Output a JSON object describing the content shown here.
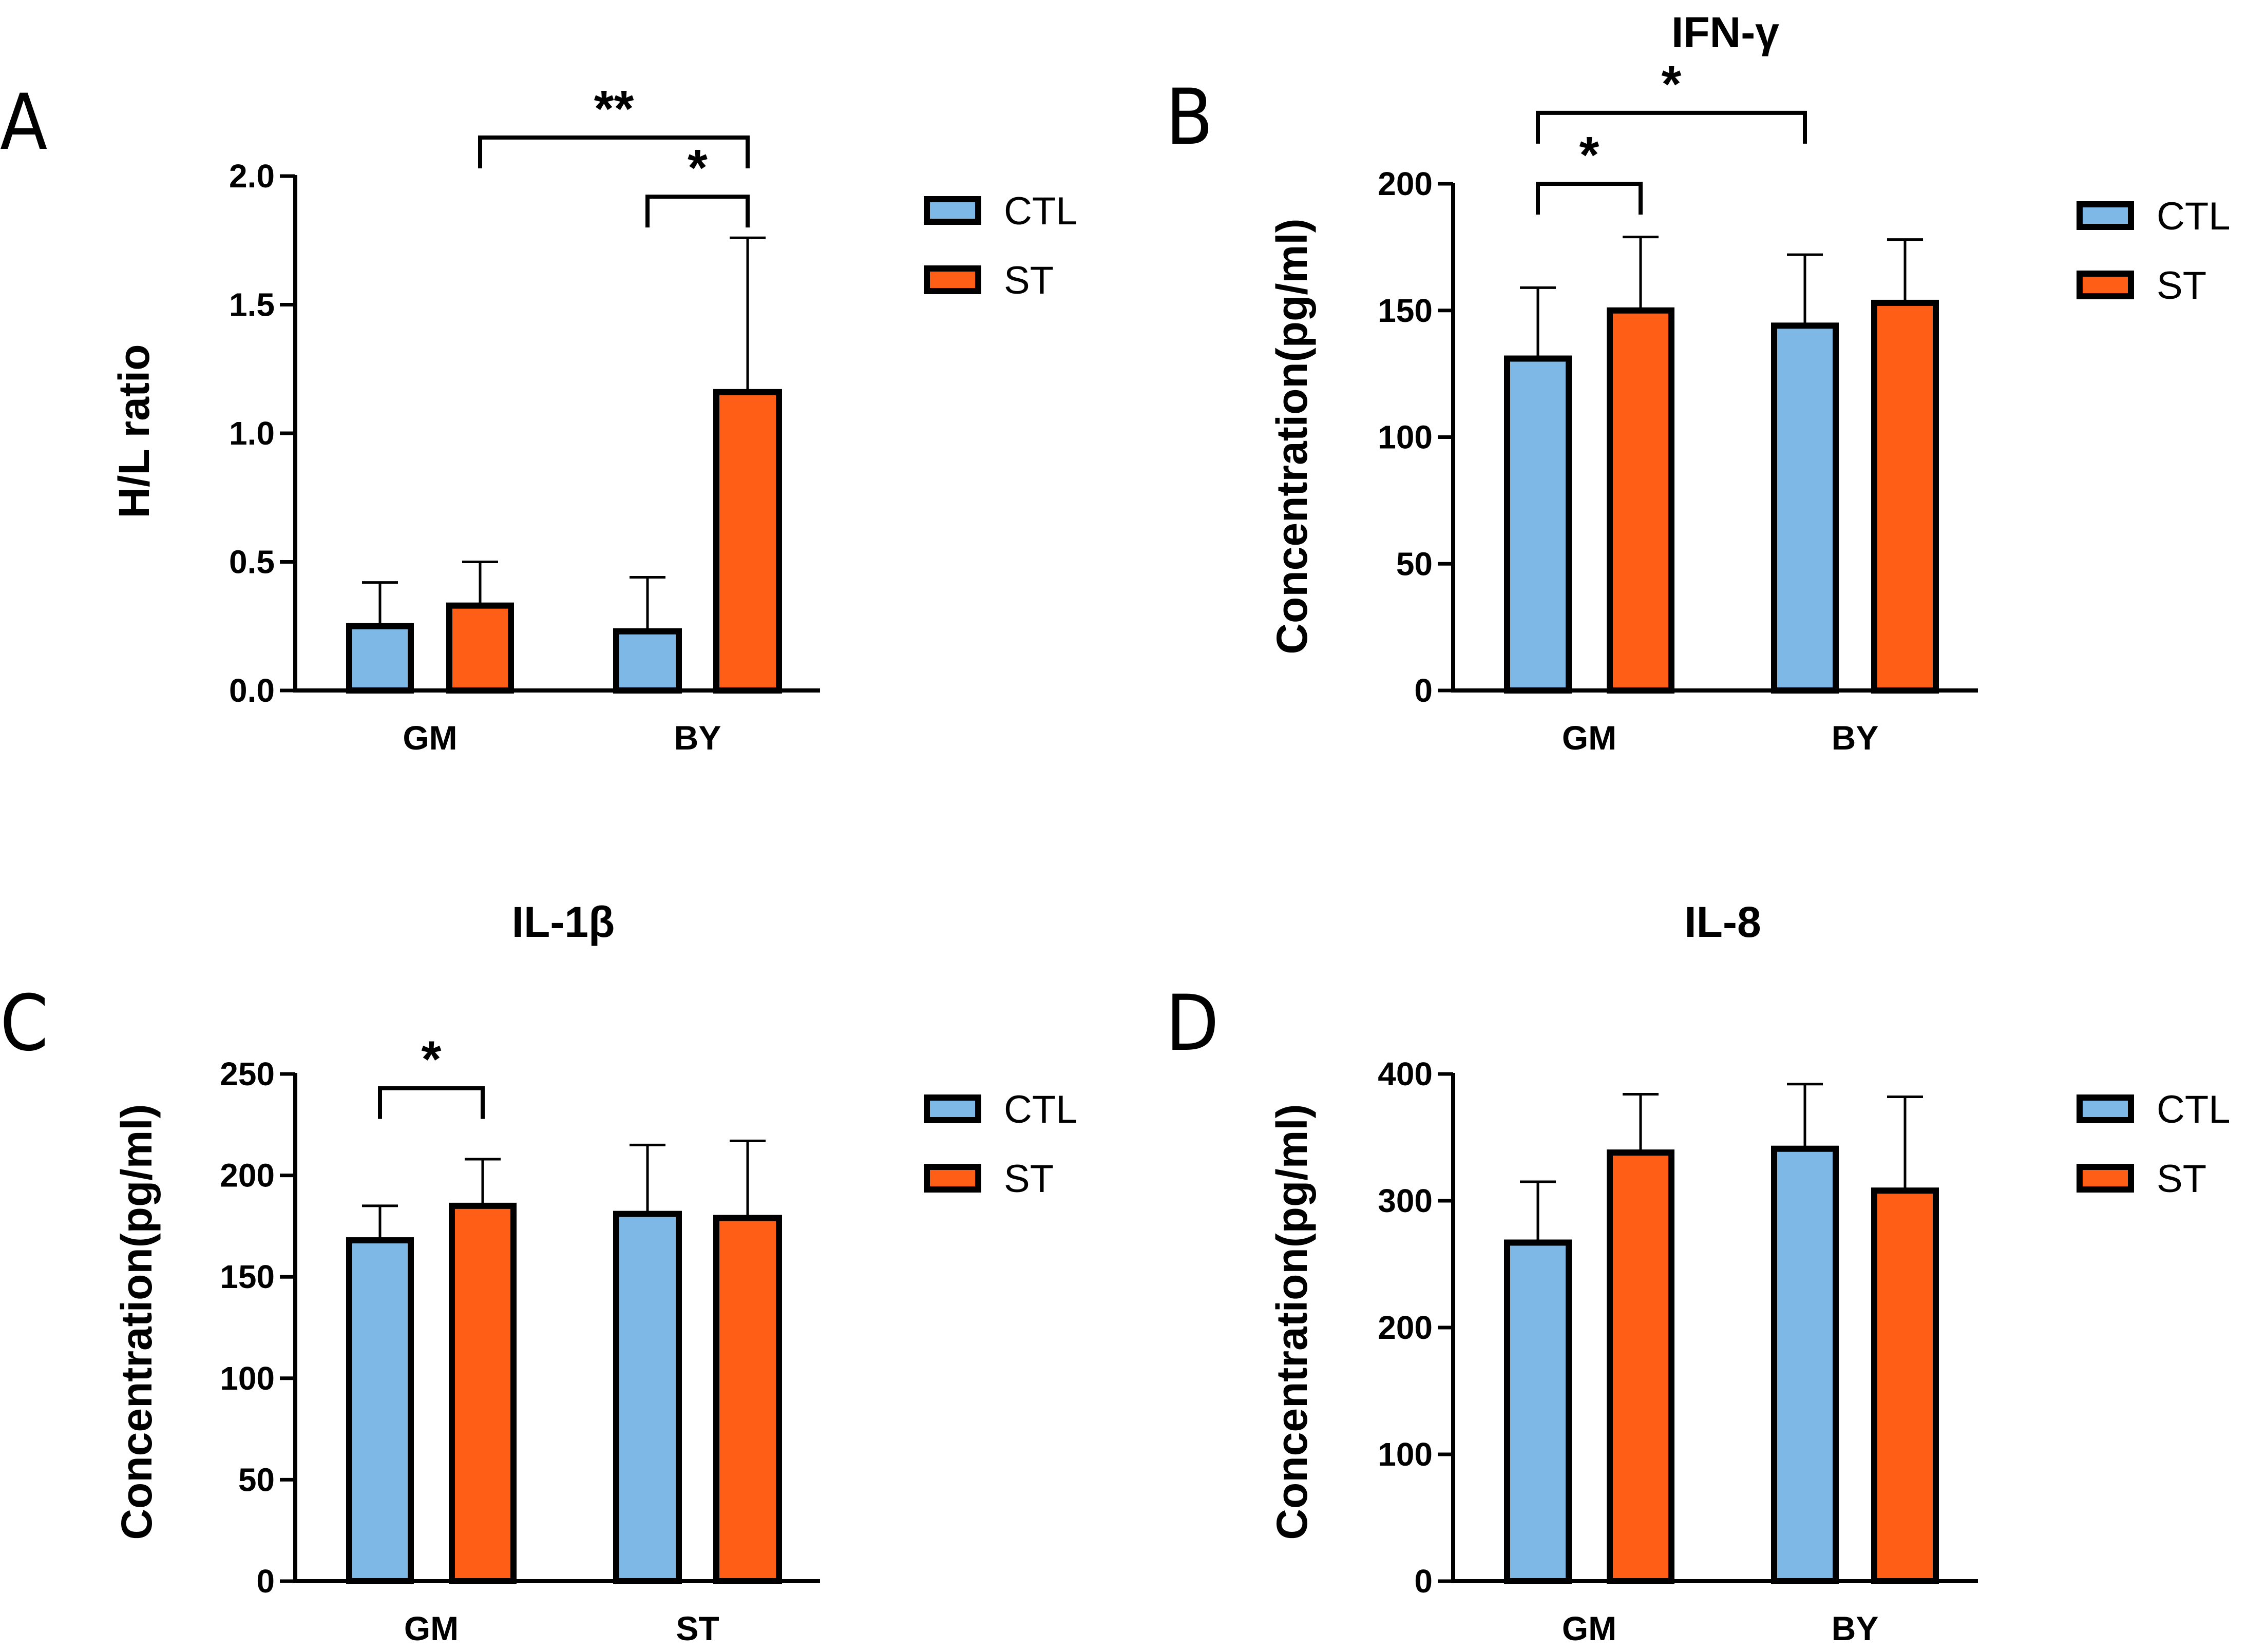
{
  "legend": {
    "series": [
      {
        "name": "CTL",
        "color": "#7EB8E6"
      },
      {
        "name": "ST",
        "color": "#FF5E17"
      }
    ]
  },
  "chart_data": [
    {
      "panel": "A",
      "type": "bar",
      "title": "",
      "ylabel": "H/L ratio",
      "xlabel": "",
      "categories": [
        "GM",
        "BY"
      ],
      "ylim": [
        0,
        2.0
      ],
      "yticks": [
        "0.0",
        "0.5",
        "1.0",
        "1.5",
        "2.0"
      ],
      "series": [
        {
          "name": "CTL",
          "values": [
            0.25,
            0.23
          ],
          "errors": [
            0.17,
            0.21
          ]
        },
        {
          "name": "ST",
          "values": [
            0.33,
            1.16
          ],
          "errors": [
            0.17,
            0.6
          ]
        }
      ],
      "significance": [
        {
          "from_group": 1,
          "from_series": 0,
          "to_group": 1,
          "to_series": 1,
          "label": "*",
          "level": 1.92
        },
        {
          "from_group": 0,
          "from_series": 1,
          "to_group": 1,
          "to_series": 1,
          "label": "**",
          "level": 2.15
        }
      ]
    },
    {
      "panel": "B",
      "type": "bar",
      "title": "IFN-γ",
      "ylabel": "Concentration(pg/ml)",
      "xlabel": "",
      "categories": [
        "GM",
        "BY"
      ],
      "ylim": [
        0,
        200
      ],
      "yticks": [
        "0",
        "50",
        "100",
        "150",
        "200"
      ],
      "series": [
        {
          "name": "CTL",
          "values": [
            131,
            144
          ],
          "errors": [
            28,
            28
          ]
        },
        {
          "name": "ST",
          "values": [
            150,
            153
          ],
          "errors": [
            29,
            25
          ]
        }
      ],
      "significance": [
        {
          "from_group": 0,
          "from_series": 0,
          "to_group": 0,
          "to_series": 1,
          "label": "*",
          "level": 200
        },
        {
          "from_group": 0,
          "from_series": 0,
          "to_group": 1,
          "to_series": 0,
          "label": "*",
          "level": 228
        }
      ]
    },
    {
      "panel": "C",
      "type": "bar",
      "title": "IL-1β",
      "ylabel": "Concentration(pg/ml)",
      "xlabel": "",
      "categories": [
        "GM",
        "ST"
      ],
      "ylim": [
        0,
        250
      ],
      "yticks": [
        "0",
        "50",
        "100",
        "150",
        "200",
        "250"
      ],
      "series": [
        {
          "name": "CTL",
          "values": [
            168,
            181
          ],
          "errors": [
            17,
            34
          ]
        },
        {
          "name": "ST",
          "values": [
            185,
            179
          ],
          "errors": [
            23,
            38
          ]
        }
      ],
      "significance": [
        {
          "from_group": 0,
          "from_series": 0,
          "to_group": 0,
          "to_series": 1,
          "label": "*",
          "level": 243
        }
      ]
    },
    {
      "panel": "D",
      "type": "bar",
      "title": "IL-8",
      "ylabel": "Concentration(pg/ml)",
      "xlabel": "",
      "categories": [
        "GM",
        "BY"
      ],
      "ylim": [
        0,
        400
      ],
      "yticks": [
        "0",
        "100",
        "200",
        "300",
        "400"
      ],
      "series": [
        {
          "name": "CTL",
          "values": [
            267,
            341
          ],
          "errors": [
            48,
            51
          ]
        },
        {
          "name": "ST",
          "values": [
            338,
            308
          ],
          "errors": [
            46,
            74
          ]
        }
      ],
      "significance": []
    }
  ]
}
